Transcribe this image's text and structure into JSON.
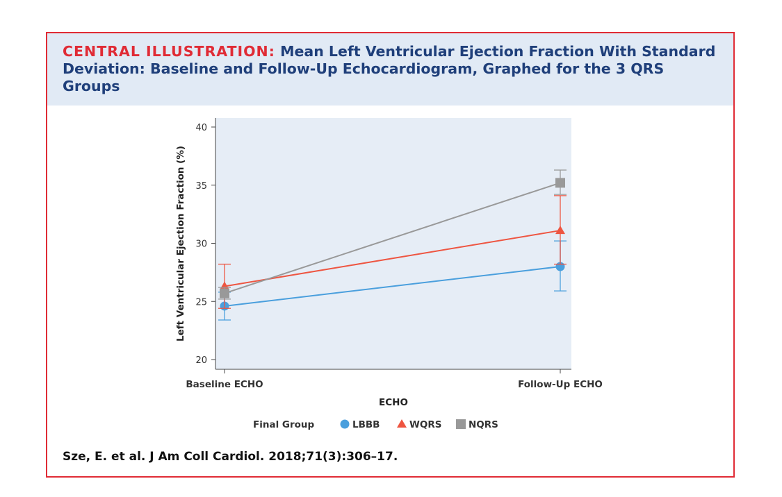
{
  "header": {
    "label": "CENTRAL ILLUSTRATION:",
    "title": "Mean Left Ventricular Ejection Fraction With Standard Deviation: Baseline and Follow-Up Echocardiogram, Graphed for the 3 QRS Groups"
  },
  "citation": "Sze, E. et al. J Am Coll Cardiol. 2018;71(3):306–17.",
  "colors": {
    "border": "#e02b35",
    "header_bg": "#e1eaf5",
    "plot_bg": "#e6edf6",
    "LBBB": "#4a9fdd",
    "WQRS": "#ee5541",
    "NQRS": "#999999"
  },
  "chart_data": {
    "type": "line",
    "categories": [
      "Baseline ECHO",
      "Follow-Up ECHO"
    ],
    "xlabel": "ECHO",
    "ylabel": "Left Ventricular Ejection Fraction (%)",
    "ylim": [
      20,
      40
    ],
    "yticks": [
      20,
      25,
      30,
      35,
      40
    ],
    "grid": false,
    "legend_title": "Final Group",
    "legend_position": "bottom",
    "series": [
      {
        "name": "LBBB",
        "marker": "circle",
        "color": "#4a9fdd",
        "values": [
          24.6,
          28.0
        ],
        "error_low": [
          23.4,
          25.9
        ],
        "error_high": [
          25.8,
          30.2
        ]
      },
      {
        "name": "WQRS",
        "marker": "triangle",
        "color": "#ee5541",
        "values": [
          26.3,
          31.1
        ],
        "error_low": [
          24.4,
          28.2
        ],
        "error_high": [
          28.2,
          34.1
        ]
      },
      {
        "name": "NQRS",
        "marker": "square",
        "color": "#999999",
        "values": [
          25.7,
          35.2
        ],
        "error_low": [
          25.2,
          34.2
        ],
        "error_high": [
          26.2,
          36.3
        ]
      }
    ]
  }
}
